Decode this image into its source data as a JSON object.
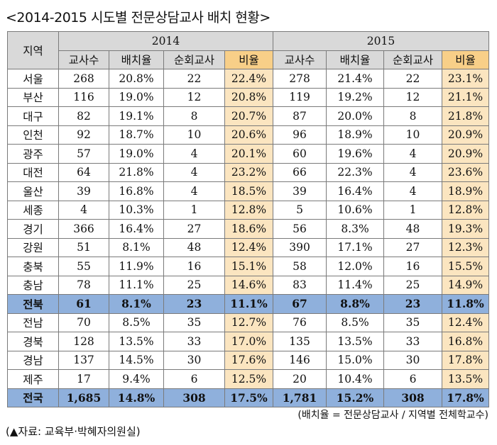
{
  "title": "<2014-2015 시도별 전문상담교사 배치 현황>",
  "header": {
    "region": "지역",
    "years": [
      "2014",
      "2015"
    ],
    "columns": [
      "교사수",
      "배치율",
      "순회교사",
      "비율"
    ]
  },
  "rows": [
    {
      "region": "서울",
      "y2014": [
        "268",
        "20.8%",
        "22",
        "22.4%"
      ],
      "y2015": [
        "278",
        "21.4%",
        "22",
        "23.1%"
      ]
    },
    {
      "region": "부산",
      "y2014": [
        "116",
        "19.0%",
        "12",
        "20.8%"
      ],
      "y2015": [
        "119",
        "19.2%",
        "12",
        "21.1%"
      ]
    },
    {
      "region": "대구",
      "y2014": [
        "82",
        "19.1%",
        "8",
        "20.7%"
      ],
      "y2015": [
        "87",
        "20.0%",
        "8",
        "21.8%"
      ]
    },
    {
      "region": "인천",
      "y2014": [
        "92",
        "18.7%",
        "10",
        "20.6%"
      ],
      "y2015": [
        "96",
        "18.9%",
        "10",
        "20.9%"
      ]
    },
    {
      "region": "광주",
      "y2014": [
        "57",
        "19.0%",
        "4",
        "20.1%"
      ],
      "y2015": [
        "60",
        "19.6%",
        "4",
        "20.9%"
      ]
    },
    {
      "region": "대전",
      "y2014": [
        "64",
        "21.8%",
        "4",
        "23.2%"
      ],
      "y2015": [
        "66",
        "22.3%",
        "4",
        "23.6%"
      ]
    },
    {
      "region": "울산",
      "y2014": [
        "39",
        "16.8%",
        "4",
        "18.5%"
      ],
      "y2015": [
        "39",
        "16.4%",
        "4",
        "18.9%"
      ]
    },
    {
      "region": "세종",
      "y2014": [
        "4",
        "10.3%",
        "1",
        "12.8%"
      ],
      "y2015": [
        "5",
        "10.6%",
        "1",
        "12.8%"
      ]
    },
    {
      "region": "경기",
      "y2014": [
        "366",
        "16.4%",
        "27",
        "18.6%"
      ],
      "y2015": [
        "56",
        "8.3%",
        "48",
        "19.3%"
      ]
    },
    {
      "region": "강원",
      "y2014": [
        "51",
        "8.1%",
        "48",
        "12.4%"
      ],
      "y2015": [
        "390",
        "17.1%",
        "27",
        "12.3%"
      ]
    },
    {
      "region": "충북",
      "y2014": [
        "55",
        "11.9%",
        "16",
        "15.1%"
      ],
      "y2015": [
        "58",
        "12.0%",
        "16",
        "15.5%"
      ]
    },
    {
      "region": "충남",
      "y2014": [
        "78",
        "11.1%",
        "25",
        "14.6%"
      ],
      "y2015": [
        "83",
        "11.4%",
        "25",
        "14.9%"
      ]
    },
    {
      "region": "전북",
      "y2014": [
        "61",
        "8.1%",
        "23",
        "11.1%"
      ],
      "y2015": [
        "67",
        "8.8%",
        "23",
        "11.8%"
      ],
      "highlight": true
    },
    {
      "region": "전남",
      "y2014": [
        "70",
        "8.5%",
        "35",
        "12.7%"
      ],
      "y2015": [
        "76",
        "8.5%",
        "35",
        "12.4%"
      ]
    },
    {
      "region": "경북",
      "y2014": [
        "128",
        "13.5%",
        "33",
        "17.0%"
      ],
      "y2015": [
        "135",
        "13.5%",
        "33",
        "16.8%"
      ]
    },
    {
      "region": "경남",
      "y2014": [
        "137",
        "14.5%",
        "30",
        "17.6%"
      ],
      "y2015": [
        "146",
        "15.0%",
        "30",
        "17.8%"
      ]
    },
    {
      "region": "제주",
      "y2014": [
        "17",
        "9.4%",
        "6",
        "12.5%"
      ],
      "y2015": [
        "20",
        "10.4%",
        "6",
        "13.5%"
      ]
    }
  ],
  "total": {
    "region": "전국",
    "y2014": [
      "1,685",
      "14.8%",
      "308",
      "17.5%"
    ],
    "y2015": [
      "1,781",
      "15.2%",
      "308",
      "17.8%"
    ]
  },
  "note": "(배치율 = 전문상담교사 / 지역별 전체학교수)",
  "source": "(▲자료: 교육부·박혜자의원실)",
  "colors": {
    "header_gray": "#d9d9d9",
    "header_orange": "#f8cf88",
    "ratio_column": "#fbe5c0",
    "highlight_blue": "#8fb0dc"
  }
}
